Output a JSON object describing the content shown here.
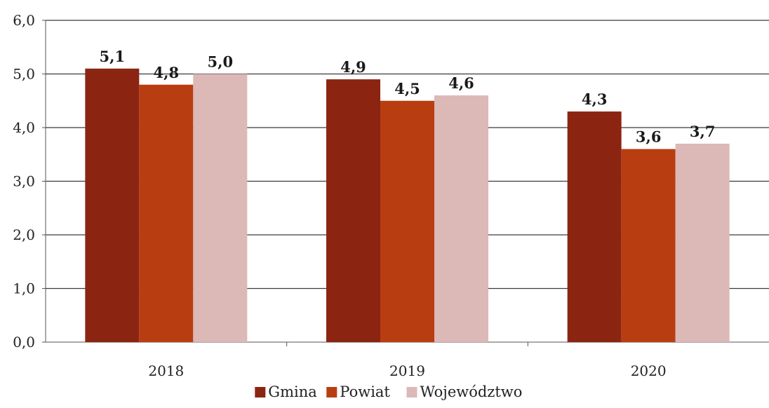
{
  "chart_data": {
    "type": "bar",
    "categories": [
      "2018",
      "2019",
      "2020"
    ],
    "series": [
      {
        "name": "Gmina",
        "color": "#8b2512",
        "values": [
          5.1,
          4.9,
          4.3
        ]
      },
      {
        "name": "Powiat",
        "color": "#b83e12",
        "values": [
          4.8,
          4.5,
          3.6
        ]
      },
      {
        "name": "Województwo",
        "color": "#dcb8b6",
        "values": [
          5.0,
          4.6,
          3.7
        ]
      }
    ],
    "data_labels": [
      [
        "5,1",
        "4,9",
        "4,3"
      ],
      [
        "4,8",
        "4,5",
        "3,6"
      ],
      [
        "5,0",
        "4,6",
        "3,7"
      ]
    ],
    "yticks": [
      "0,0",
      "1,0",
      "2,0",
      "3,0",
      "4,0",
      "5,0",
      "6,0"
    ],
    "ylim": [
      0,
      6
    ],
    "grid": true,
    "legend": "bottom",
    "title": "",
    "xlabel": "",
    "ylabel": ""
  }
}
